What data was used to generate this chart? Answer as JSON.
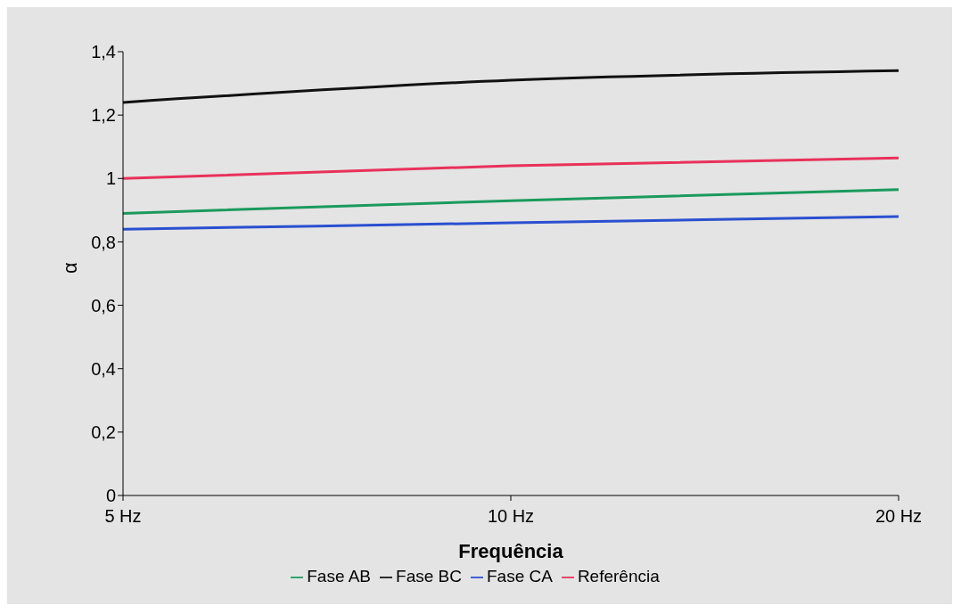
{
  "chart_data": {
    "type": "line",
    "xlabel": "Frequência",
    "ylabel": "α",
    "categories": [
      "5 Hz",
      "10 Hz",
      "20 Hz"
    ],
    "series": [
      {
        "name": "Referência",
        "color": "#e8315a",
        "values": [
          1.0,
          1.04,
          1.065
        ]
      },
      {
        "name": "Fase AB",
        "color": "#1a9a5c",
        "values": [
          0.89,
          0.93,
          0.965
        ]
      },
      {
        "name": "Fase BC",
        "color": "#111111",
        "values": [
          1.24,
          1.31,
          1.34
        ]
      },
      {
        "name": "Fase CA",
        "color": "#2a4fd0",
        "values": [
          0.84,
          0.86,
          0.88
        ]
      }
    ],
    "ylim": [
      0,
      1.4
    ],
    "yticks": [
      {
        "value": 0,
        "label": "0"
      },
      {
        "value": 0.2,
        "label": "0,2"
      },
      {
        "value": 0.4,
        "label": "0,4"
      },
      {
        "value": 0.6,
        "label": "0,6"
      },
      {
        "value": 0.8,
        "label": "0,8"
      },
      {
        "value": 1,
        "label": "1"
      },
      {
        "value": 1.2,
        "label": "1,2"
      },
      {
        "value": 1.4,
        "label": "1,4"
      }
    ],
    "grid": false,
    "legend": "bottom",
    "marker": "none",
    "line_style": "solid"
  }
}
